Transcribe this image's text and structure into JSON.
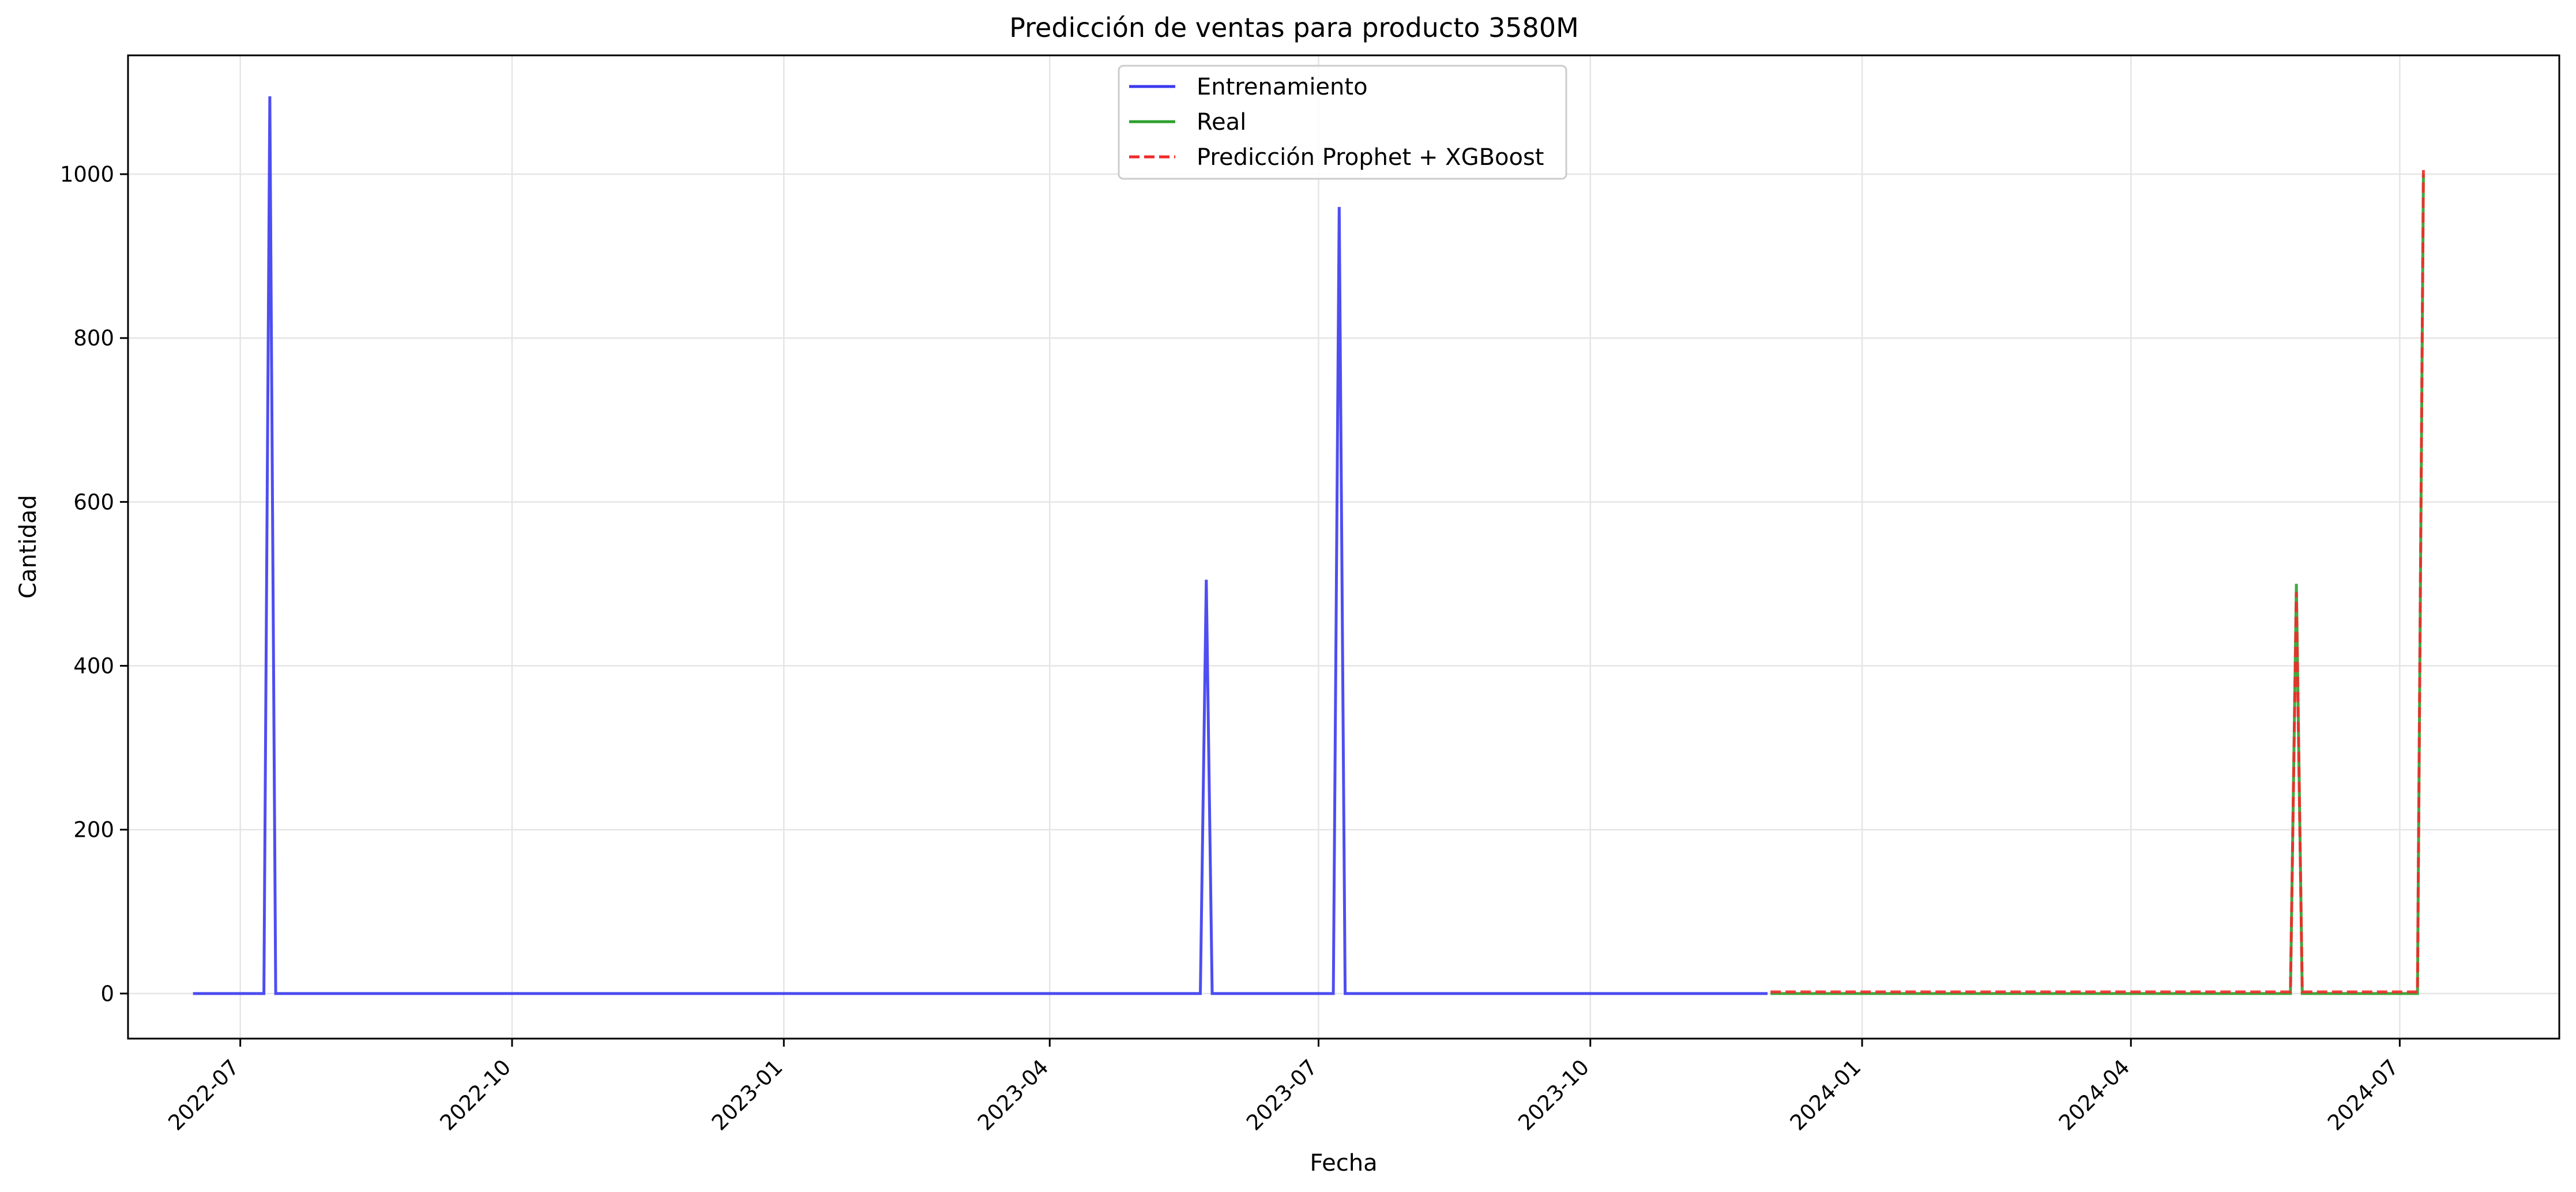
{
  "chart_data": {
    "type": "line",
    "title": "Predicción de ventas para producto 3580M",
    "xlabel": "Fecha",
    "ylabel": "Cantidad",
    "xlim": [
      "2022-05-24",
      "2024-08-24"
    ],
    "ylim": [
      -55,
      1145
    ],
    "grid": true,
    "legend_position": "top-center",
    "x_ticks": [
      "2022-07",
      "2022-10",
      "2023-01",
      "2023-04",
      "2023-07",
      "2023-10",
      "2024-01",
      "2024-04",
      "2024-07"
    ],
    "y_ticks": [
      0,
      200,
      400,
      600,
      800,
      1000
    ],
    "series": [
      {
        "name": "Entrenamiento",
        "color": "#3b3bef",
        "style": "solid",
        "x": [
          "2022-06-15",
          "2022-07-09",
          "2022-07-11",
          "2022-07-13",
          "2023-05-22",
          "2023-05-24",
          "2023-05-26",
          "2023-07-06",
          "2023-07-08",
          "2023-07-10",
          "2023-11-30"
        ],
        "y": [
          0,
          0,
          1095,
          0,
          0,
          505,
          0,
          0,
          960,
          0,
          0
        ]
      },
      {
        "name": "Real",
        "color": "#2ca02c",
        "style": "solid",
        "x": [
          "2023-12-01",
          "2024-05-25",
          "2024-05-27",
          "2024-05-29",
          "2024-07-07",
          "2024-07-09"
        ],
        "y": [
          0,
          0,
          500,
          0,
          0,
          1000
        ]
      },
      {
        "name": "Predicción Prophet + XGBoost",
        "color": "#ef2a2a",
        "style": "dashed",
        "x": [
          "2023-12-01",
          "2024-05-25",
          "2024-05-27",
          "2024-05-29",
          "2024-07-07",
          "2024-07-09"
        ],
        "y": [
          2,
          2,
          490,
          2,
          2,
          1005
        ]
      }
    ]
  }
}
